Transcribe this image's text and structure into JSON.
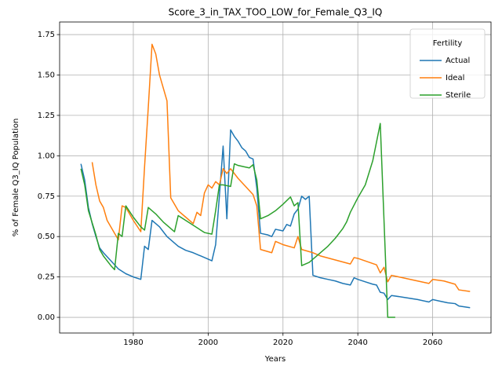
{
  "chart_data": {
    "type": "line",
    "title": "Score_3_in_TAX_TOO_LOW_for_Female_Q3_IQ",
    "xlabel": "Years",
    "ylabel": "% of Female Q3_IQ Population",
    "legend_title": "Fertility",
    "legend": "upper right",
    "grid": true,
    "xlim": [
      1960.3,
      2075.6
    ],
    "ylim": [
      -0.097,
      1.828
    ],
    "xticks": [
      1980,
      2000,
      2020,
      2040,
      2060
    ],
    "yticks": [
      {
        "value": 0,
        "label": "0.00"
      },
      0.25,
      {
        "value": 0.5,
        "label": "0.50"
      },
      0.75,
      {
        "value": 1,
        "label": "1.00"
      },
      1.25,
      {
        "value": 1.5,
        "label": "1.50"
      },
      1.75
    ],
    "series": [
      {
        "name": "Actual",
        "color": "#1f77b4",
        "x": [
          1966,
          1967,
          1968,
          1969,
          1970,
          1971,
          1972,
          1974,
          1976,
          1978,
          1980,
          1982,
          1983,
          1984,
          1985,
          1986,
          1987,
          1988,
          1989,
          1990,
          1992,
          1994,
          1996,
          1998,
          2000,
          2001,
          2002,
          2003,
          2004,
          2005,
          2006,
          2007,
          2008,
          2009,
          2010,
          2011,
          2012,
          2013,
          2014,
          2016,
          2017,
          2018,
          2020,
          2021,
          2022,
          2023,
          2024,
          2025,
          2026,
          2027,
          2028,
          2030,
          2032,
          2034,
          2036,
          2038,
          2039,
          2040,
          2042,
          2044,
          2045,
          2046,
          2047,
          2048,
          2049,
          2052,
          2056,
          2059,
          2060,
          2062,
          2064,
          2066,
          2067,
          2070
        ],
        "values": [
          0.95,
          0.85,
          0.68,
          0.58,
          0.5,
          0.43,
          0.4,
          0.35,
          0.3,
          0.27,
          0.25,
          0.235,
          0.44,
          0.42,
          0.6,
          0.58,
          0.56,
          0.53,
          0.5,
          0.48,
          0.44,
          0.415,
          0.4,
          0.38,
          0.36,
          0.35,
          0.45,
          0.75,
          1.06,
          0.61,
          1.16,
          1.12,
          1.09,
          1.05,
          1.03,
          0.99,
          0.98,
          0.8,
          0.52,
          0.51,
          0.5,
          0.545,
          0.535,
          0.575,
          0.565,
          0.64,
          0.67,
          0.75,
          0.73,
          0.75,
          0.26,
          0.245,
          0.235,
          0.225,
          0.21,
          0.2,
          0.245,
          0.235,
          0.22,
          0.205,
          0.2,
          0.155,
          0.15,
          0.11,
          0.135,
          0.125,
          0.11,
          0.095,
          0.11,
          0.1,
          0.09,
          0.085,
          0.07,
          0.06
        ]
      },
      {
        "name": "Ideal",
        "color": "#ff7f0e",
        "x": [
          1969,
          1970,
          1971,
          1972,
          1973,
          1975,
          1976,
          1977,
          1978,
          1980,
          1982,
          1983,
          1984,
          1985,
          1986,
          1987,
          1988,
          1989,
          1990,
          1991,
          1992,
          1994,
          1996,
          1997,
          1998,
          1999,
          2000,
          2001,
          2002,
          2003,
          2004,
          2005,
          2006,
          2008,
          2010,
          2012,
          2013,
          2014,
          2017,
          2018,
          2020,
          2023,
          2024,
          2025,
          2028,
          2030,
          2034,
          2038,
          2039,
          2040,
          2045,
          2046,
          2047,
          2048,
          2049,
          2052,
          2055,
          2059,
          2060,
          2063,
          2066,
          2067,
          2070
        ],
        "values": [
          0.96,
          0.82,
          0.72,
          0.68,
          0.6,
          0.52,
          0.48,
          0.69,
          0.68,
          0.6,
          0.53,
          0.93,
          1.3,
          1.69,
          1.63,
          1.5,
          1.42,
          1.34,
          0.74,
          0.7,
          0.66,
          0.62,
          0.58,
          0.65,
          0.63,
          0.77,
          0.82,
          0.8,
          0.84,
          0.82,
          0.92,
          0.89,
          0.92,
          0.86,
          0.81,
          0.76,
          0.69,
          0.42,
          0.4,
          0.47,
          0.45,
          0.43,
          0.5,
          0.42,
          0.4,
          0.38,
          0.355,
          0.33,
          0.37,
          0.365,
          0.325,
          0.275,
          0.31,
          0.22,
          0.26,
          0.245,
          0.23,
          0.21,
          0.235,
          0.225,
          0.205,
          0.17,
          0.16
        ]
      },
      {
        "name": "Sterile",
        "color": "#2ca02c",
        "x": [
          1966,
          1967,
          1968,
          1970,
          1971,
          1972,
          1974,
          1975,
          1976,
          1977,
          1978,
          1980,
          1982,
          1983,
          1984,
          1986,
          1988,
          1990,
          1991,
          1992,
          1994,
          1996,
          1998,
          1999,
          2001,
          2002,
          2003,
          2004,
          2006,
          2007,
          2008,
          2010,
          2011,
          2012,
          2013,
          2014,
          2016,
          2018,
          2020,
          2022,
          2023,
          2024,
          2025,
          2027,
          2030,
          2032,
          2034,
          2036,
          2037,
          2038,
          2040,
          2042,
          2044,
          2046,
          2047,
          2048,
          2050
        ],
        "values": [
          0.92,
          0.82,
          0.66,
          0.51,
          0.42,
          0.38,
          0.32,
          0.295,
          0.52,
          0.5,
          0.69,
          0.62,
          0.56,
          0.54,
          0.68,
          0.64,
          0.59,
          0.55,
          0.53,
          0.63,
          0.6,
          0.57,
          0.54,
          0.525,
          0.515,
          0.66,
          0.82,
          0.82,
          0.81,
          0.95,
          0.94,
          0.93,
          0.925,
          0.945,
          0.85,
          0.61,
          0.63,
          0.66,
          0.7,
          0.745,
          0.69,
          0.71,
          0.32,
          0.34,
          0.4,
          0.44,
          0.49,
          0.55,
          0.59,
          0.65,
          0.74,
          0.82,
          0.97,
          1.2,
          0.6,
          0,
          0
        ]
      }
    ]
  }
}
